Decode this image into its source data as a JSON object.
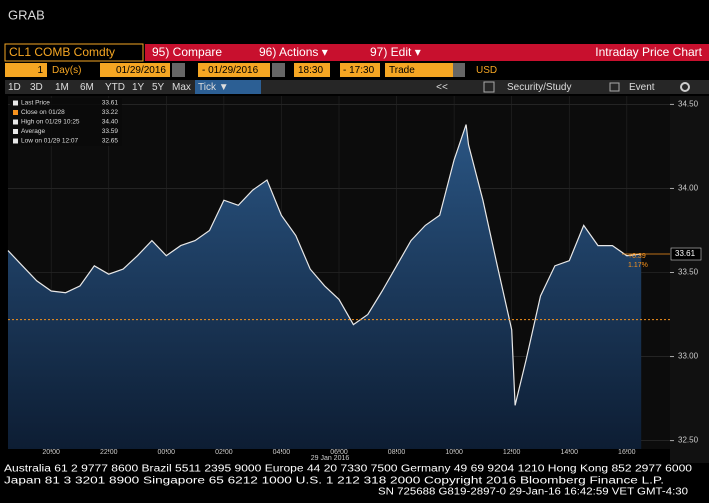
{
  "header": {
    "title": "GRAB"
  },
  "toolbar": {
    "security": "CL1 COMB Comdty",
    "compare": "95) Compare",
    "actions": "96) Actions ▾",
    "edit": "97) Edit ▾",
    "function": "Intraday Price Chart"
  },
  "controls": {
    "period": "1",
    "unit": "Day(s)",
    "start_date": "01/29/2016",
    "end_date": "- 01/29/2016",
    "start_time": "18:30",
    "end_time": "- 17:30",
    "field": "Trade",
    "currency": "USD",
    "ranges": [
      "1D",
      "3D",
      "1M",
      "6M",
      "YTD",
      "1Y",
      "5Y",
      "Max",
      "Tick ▼"
    ],
    "tools": [
      "<<",
      "Security/Study",
      "Event"
    ]
  },
  "chart_data": {
    "type": "area",
    "x": [
      "18:30",
      "19:00",
      "19:30",
      "20:00",
      "20:30",
      "21:00",
      "21:30",
      "22:00",
      "22:30",
      "23:00",
      "23:30",
      "00:00",
      "00:30",
      "01:00",
      "01:30",
      "02:00",
      "02:30",
      "03:00",
      "03:30",
      "04:00",
      "04:30",
      "05:00",
      "05:30",
      "06:00",
      "06:30",
      "07:00",
      "07:30",
      "08:00",
      "08:30",
      "09:00",
      "09:30",
      "10:00",
      "10:25",
      "10:30",
      "11:00",
      "11:30",
      "12:00",
      "12:07",
      "12:30",
      "13:00",
      "13:30",
      "14:00",
      "14:30",
      "15:00",
      "15:30",
      "16:00",
      "16:30"
    ],
    "series": [
      {
        "name": "Last Price",
        "color": "#e8e8e8",
        "values": [
          33.63,
          33.54,
          33.45,
          33.39,
          33.38,
          33.42,
          33.54,
          33.49,
          33.52,
          33.6,
          33.69,
          33.6,
          33.66,
          33.69,
          33.75,
          33.93,
          33.9,
          33.99,
          34.05,
          33.84,
          33.72,
          33.52,
          33.42,
          33.34,
          33.19,
          33.25,
          33.39,
          33.54,
          33.69,
          33.78,
          33.84,
          34.17,
          34.38,
          34.26,
          33.93,
          33.54,
          33.16,
          32.71,
          32.98,
          33.36,
          33.54,
          33.57,
          33.78,
          33.66,
          33.66,
          33.6,
          33.61
        ]
      }
    ],
    "xlim": [
      "18:30",
      "17:30"
    ],
    "xticks": [
      "20:00",
      "22:00",
      "00:00",
      "02:00",
      "04:00",
      "06:00",
      "08:00",
      "10:00",
      "12:00",
      "14:00",
      "16:00"
    ],
    "x_sublabel": "29 Jan 2016",
    "ylim": [
      32.45,
      34.55
    ],
    "yticks": [
      {
        "value": 32.5,
        "label": "32.50"
      },
      {
        "value": 33,
        "label": "33.00"
      },
      {
        "value": 33.5,
        "label": "33.50"
      },
      {
        "value": 34,
        "label": "34.00"
      },
      {
        "value": 34.5,
        "label": "34.50"
      }
    ],
    "grid": true,
    "reference_line": {
      "name": "Close on 01/28",
      "value": 33.22,
      "color": "#f7931e"
    },
    "last_price": {
      "value": 33.61,
      "label": "33.61"
    },
    "change_labels": [
      "+0.39",
      "1.17%"
    ],
    "legend": [
      {
        "label": "Last Price",
        "value": 33.61
      },
      {
        "label": "Close on 01/28",
        "value": 33.22
      },
      {
        "label": "High on 01/29 10:25",
        "value": {
          "value": 34.4,
          "label": "34.40"
        }
      },
      {
        "label": "Average",
        "value": 33.59
      },
      {
        "label": "Low on 01/29 12:07",
        "value": 32.65
      }
    ]
  },
  "footer": {
    "lines": [
      "Australia 61 2 9777 8600 Brazil 5511 2395 9000 Europe 44 20 7330 7500 Germany 49 69 9204 1210 Hong Kong 852 2977 6000",
      "Japan 81 3 3201 8900 Singapore 65 6212 1000 U.S. 1 212 318 2000 Copyright 2016 Bloomberg Finance L.P.",
      "SN 725688 G819-2897-0 29-Jan-16 16:42:59 VET GMT-4:30"
    ]
  }
}
